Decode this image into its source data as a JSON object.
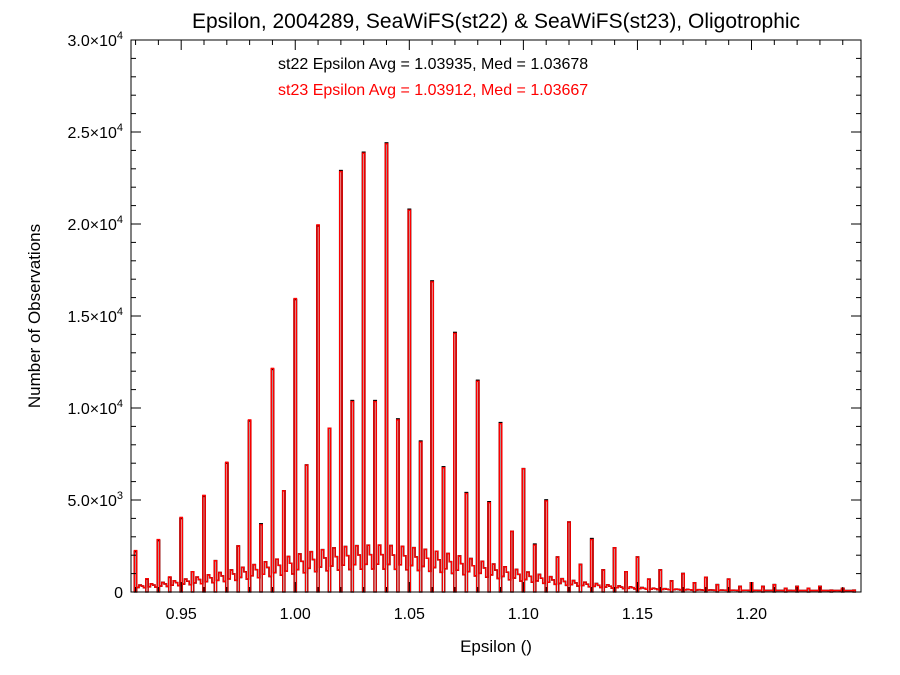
{
  "chart_data": {
    "type": "bar",
    "title": "Epsilon, 2004289, SeaWiFS(st22) & SeaWiFS(st23), Oligotrophic",
    "xlabel": "Epsilon ()",
    "ylabel": "Number of Observations",
    "xlim": [
      0.928,
      1.248
    ],
    "ylim": [
      0,
      30000
    ],
    "x_ticks": [
      {
        "value": 0.95,
        "label": "0.95"
      },
      {
        "value": 1.0,
        "label": "1.00"
      },
      {
        "value": 1.05,
        "label": "1.05"
      },
      {
        "value": 1.1,
        "label": "1.10"
      },
      {
        "value": 1.15,
        "label": "1.15"
      },
      {
        "value": 1.2,
        "label": "1.20"
      }
    ],
    "y_ticks": [
      {
        "value": 0,
        "mantissa": "0",
        "exp": ""
      },
      {
        "value": 5000,
        "mantissa": "5.0×10",
        "exp": "3"
      },
      {
        "value": 10000,
        "mantissa": "1.0×10",
        "exp": "4"
      },
      {
        "value": 15000,
        "mantissa": "1.5×10",
        "exp": "4"
      },
      {
        "value": 20000,
        "mantissa": "2.0×10",
        "exp": "4"
      },
      {
        "value": 25000,
        "mantissa": "2.5×10",
        "exp": "4"
      },
      {
        "value": 30000,
        "mantissa": "3.0×10",
        "exp": "4"
      }
    ],
    "annotations": [
      {
        "text": "st22 Epsilon Avg = 1.03935, Med = 1.03678",
        "color": "#000000"
      },
      {
        "text": "st23 Epsilon Avg = 1.03912, Med = 1.03667",
        "color": "#ff0000"
      }
    ],
    "bin_width": 0.001,
    "peaks_x": [
      0.93,
      0.935,
      0.94,
      0.945,
      0.95,
      0.955,
      0.96,
      0.965,
      0.97,
      0.975,
      0.98,
      0.985,
      0.99,
      0.995,
      1.0,
      1.005,
      1.01,
      1.015,
      1.02,
      1.025,
      1.03,
      1.035,
      1.04,
      1.045,
      1.05,
      1.055,
      1.06,
      1.065,
      1.07,
      1.075,
      1.08,
      1.085,
      1.09,
      1.095,
      1.1,
      1.105,
      1.11,
      1.115,
      1.12,
      1.125,
      1.13,
      1.135,
      1.14,
      1.145,
      1.15,
      1.155,
      1.16,
      1.165,
      1.17,
      1.175,
      1.18,
      1.185,
      1.19,
      1.195,
      1.2,
      1.205,
      1.21,
      1.215,
      1.22,
      1.225,
      1.23,
      1.235,
      1.24,
      1.245
    ],
    "series": [
      {
        "name": "st22",
        "color": "#000000",
        "peak_values": [
          2200,
          700,
          2800,
          800,
          4000,
          1100,
          5200,
          1700,
          7000,
          2500,
          9300,
          3700,
          12100,
          5500,
          15900,
          6900,
          19900,
          8900,
          22900,
          10400,
          23900,
          10400,
          24400,
          9400,
          20800,
          8200,
          16900,
          6800,
          14100,
          5400,
          11500,
          4900,
          9200,
          3300,
          6700,
          2600,
          5000,
          1900,
          3800,
          1500,
          2900,
          1200,
          2400,
          1100,
          1900,
          700,
          1200,
          600,
          1000,
          500,
          800,
          400,
          700,
          300,
          500,
          300,
          400,
          200,
          300,
          200,
          300,
          100,
          200,
          100
        ]
      },
      {
        "name": "st23",
        "color": "#ff0000",
        "peak_values": [
          2250,
          720,
          2850,
          820,
          4050,
          1100,
          5250,
          1700,
          7050,
          2500,
          9350,
          3650,
          12150,
          5500,
          15950,
          6900,
          19950,
          8900,
          22850,
          10350,
          23850,
          10350,
          24350,
          9350,
          20750,
          8150,
          16850,
          6750,
          14050,
          5350,
          11450,
          4850,
          9150,
          3300,
          6700,
          2550,
          4950,
          1900,
          3800,
          1500,
          2850,
          1200,
          2400,
          1100,
          1900,
          700,
          1200,
          600,
          1000,
          500,
          800,
          400,
          700,
          300,
          500,
          300,
          400,
          200,
          300,
          200,
          300,
          100,
          200,
          100
        ]
      }
    ],
    "colors": {
      "axis": "#000000",
      "st22": "#000000",
      "st23": "#ff0000"
    }
  }
}
